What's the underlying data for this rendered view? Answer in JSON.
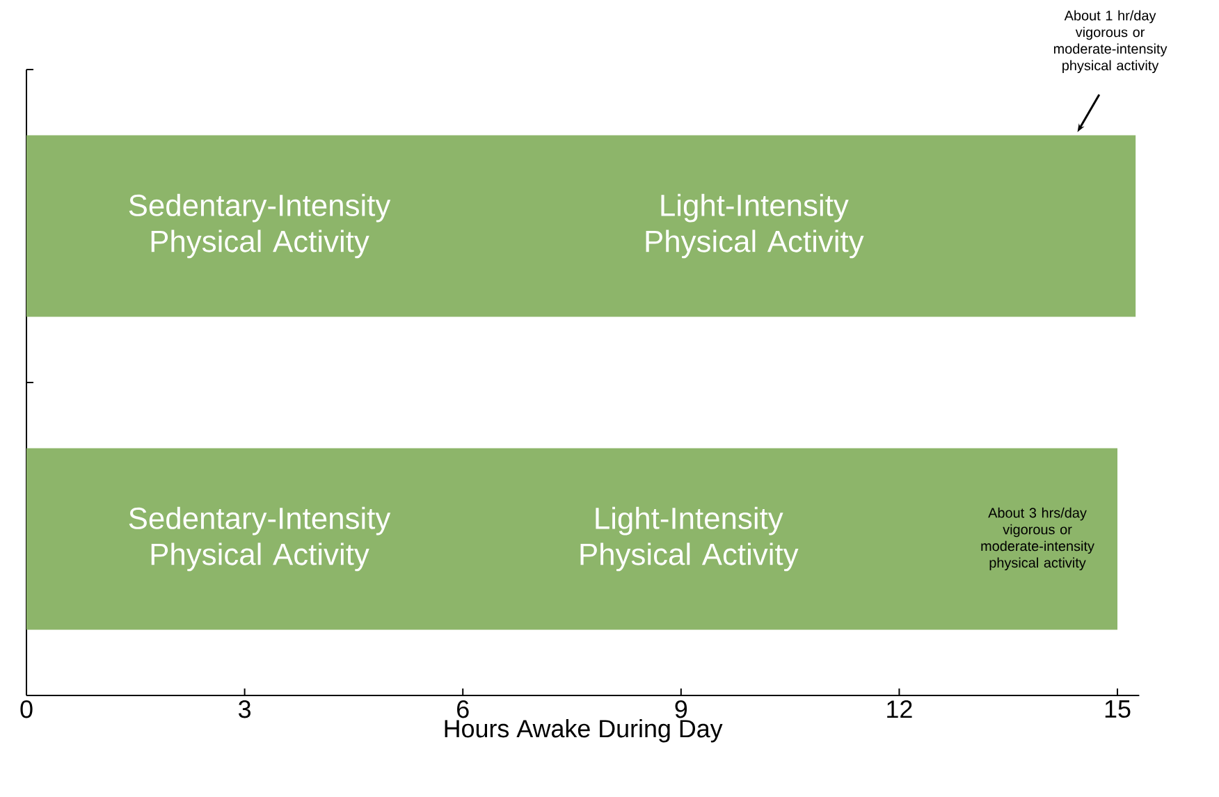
{
  "chart_data": {
    "type": "bar",
    "orientation": "horizontal",
    "xlabel": "Hours Awake During Day",
    "categories": [
      null,
      null
    ],
    "values": [
      15.25,
      15
    ],
    "color": "#8db56a",
    "xlim": [
      0,
      15.3
    ],
    "xticks": [
      0,
      3,
      6,
      9,
      12,
      15
    ],
    "tick_labels": "x",
    "annotations": [
      "Sedentary-Intensity Physical Activity",
      "Light-Intensity Physical Activity",
      "About 1 hr/day vigorous or moderate-intensity physical activity",
      "Sedentary-Intensity Physical Activity",
      "Light-Intensity Physical Activity",
      "About 3 hrs/day vigorous or moderate-intensity physical activity"
    ]
  }
}
